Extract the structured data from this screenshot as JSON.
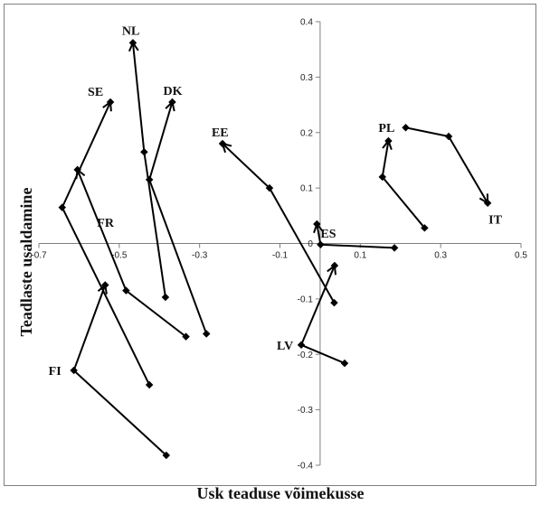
{
  "chart_data": {
    "type": "scatter",
    "title": "",
    "xlabel": "Usk teaduse võimekusse",
    "ylabel": "Teadlaste usaldamine",
    "xlim": [
      -0.7,
      0.5
    ],
    "ylim": [
      -0.4,
      0.4
    ],
    "x_ticks": [
      -0.7,
      -0.5,
      -0.3,
      -0.1,
      0.1,
      0.3,
      0.5
    ],
    "x_tick_labels": [
      "-0.7",
      "-0.5",
      "-0.3",
      "-0.1",
      "0.1",
      "0.3",
      "0.5"
    ],
    "y_ticks": [
      -0.4,
      -0.3,
      -0.2,
      -0.1,
      0.1,
      0.2,
      0.3,
      0.4
    ],
    "y_tick_labels": [
      "-0.4",
      "-0.3",
      "-0.2",
      "-0.1",
      "0.1",
      "0.2",
      "0.3",
      "0.4"
    ],
    "y_zero_label": "0",
    "grid": false,
    "legend": "none",
    "marker_color": "#000000",
    "series": [
      {
        "name": "NL",
        "points": [
          [
            -0.385,
            -0.097
          ],
          [
            -0.438,
            0.165
          ],
          [
            -0.466,
            0.362
          ]
        ]
      },
      {
        "name": "DK",
        "points": [
          [
            -0.283,
            -0.163
          ],
          [
            -0.425,
            0.115
          ],
          [
            -0.368,
            0.255
          ]
        ]
      },
      {
        "name": "SE",
        "points": [
          [
            -0.425,
            -0.255
          ],
          [
            -0.642,
            0.065
          ],
          [
            -0.522,
            0.255
          ]
        ]
      },
      {
        "name": "FR",
        "points": [
          [
            -0.334,
            -0.168
          ],
          [
            -0.483,
            -0.085
          ],
          [
            -0.604,
            0.133
          ]
        ]
      },
      {
        "name": "FI",
        "points": [
          [
            -0.383,
            -0.382
          ],
          [
            -0.613,
            -0.229
          ],
          [
            -0.535,
            -0.075
          ]
        ]
      },
      {
        "name": "EE",
        "points": [
          [
            0.035,
            -0.107
          ],
          [
            -0.126,
            0.1
          ],
          [
            -0.243,
            0.18
          ]
        ]
      },
      {
        "name": "ES",
        "points": [
          [
            0.185,
            -0.008
          ],
          [
            0.001,
            -0.002
          ],
          [
            -0.008,
            0.035
          ]
        ]
      },
      {
        "name": "LV",
        "points": [
          [
            0.061,
            -0.216
          ],
          [
            -0.047,
            -0.183
          ],
          [
            0.036,
            -0.04
          ]
        ]
      },
      {
        "name": "PL",
        "points": [
          [
            0.26,
            0.028
          ],
          [
            0.155,
            0.12
          ],
          [
            0.17,
            0.185
          ]
        ]
      },
      {
        "name": "IT",
        "points": [
          [
            0.213,
            0.209
          ],
          [
            0.32,
            0.193
          ],
          [
            0.417,
            0.073
          ]
        ]
      }
    ],
    "labels": [
      {
        "text": "NL",
        "x": -0.466,
        "y": 0.362
      },
      {
        "text": "SE",
        "x": -0.522,
        "y": 0.255
      },
      {
        "text": "DK",
        "x": -0.368,
        "y": 0.255
      },
      {
        "text": "EE",
        "x": -0.243,
        "y": 0.18
      },
      {
        "text": "FR",
        "x": -0.535,
        "y": 0.03
      },
      {
        "text": "FI",
        "x": -0.613,
        "y": -0.229
      },
      {
        "text": "LV",
        "x": -0.047,
        "y": -0.183
      },
      {
        "text": "ES",
        "x": -0.008,
        "y": 0.035
      },
      {
        "text": "PL",
        "x": 0.17,
        "y": 0.185
      },
      {
        "text": "IT",
        "x": 0.417,
        "y": 0.073
      }
    ]
  }
}
